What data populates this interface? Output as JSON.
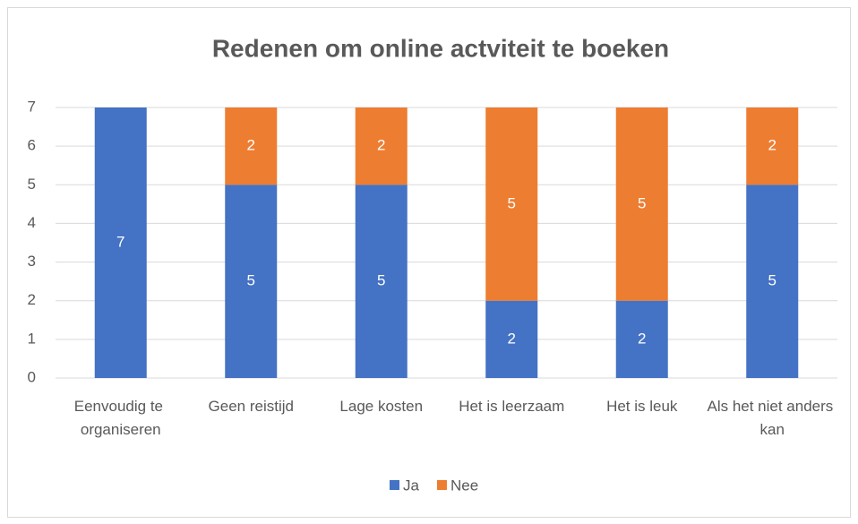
{
  "chart_data": {
    "type": "stacked_bar",
    "title": "Redenen om online actviteit te boeken",
    "categories": [
      "Eenvoudig te organiseren",
      "Geen reistijd",
      "Lage kosten",
      "Het is leerzaam",
      "Het is leuk",
      "Als het niet anders kan"
    ],
    "series": [
      {
        "name": "Ja",
        "color": "#4472c4",
        "values": [
          7,
          5,
          5,
          2,
          2,
          5
        ]
      },
      {
        "name": "Nee",
        "color": "#ed7d31",
        "values": [
          0,
          2,
          2,
          5,
          5,
          2
        ]
      }
    ],
    "ylim": [
      0,
      7
    ],
    "yticks": [
      0,
      1,
      2,
      3,
      4,
      5,
      6,
      7
    ],
    "grid": true,
    "legend": "bottom"
  }
}
